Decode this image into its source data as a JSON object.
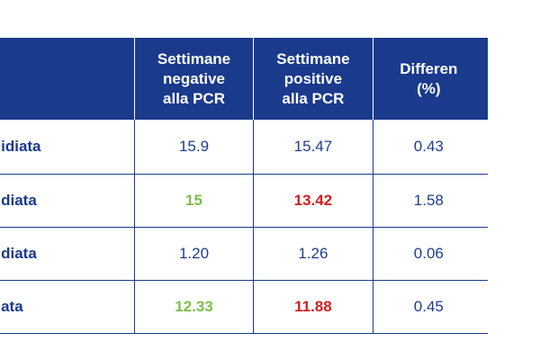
{
  "table": {
    "headers": [
      "",
      "Settimane\nnegative\nalla PCR",
      "Settimane\npositive\nalla PCR",
      "Differen\n(%)"
    ],
    "rows": [
      {
        "label": "/nidiata",
        "negative": "15.9",
        "positive": "15.47",
        "difference": "0.43"
      },
      {
        "label": "nidiata",
        "negative": "15",
        "positive": "13.42",
        "difference": "1.58"
      },
      {
        "label": "nidiata",
        "negative": "1.20",
        "positive": "1.26",
        "difference": "0.06"
      },
      {
        "label": "diata",
        "negative": "12.33",
        "positive": "11.88",
        "difference": "0.45"
      }
    ],
    "colors": {
      "header_bg": "#1a3a8c",
      "text": "#1e3d8f",
      "highlight_good": "#7bbf4a",
      "highlight_bad": "#d21f1f"
    }
  }
}
